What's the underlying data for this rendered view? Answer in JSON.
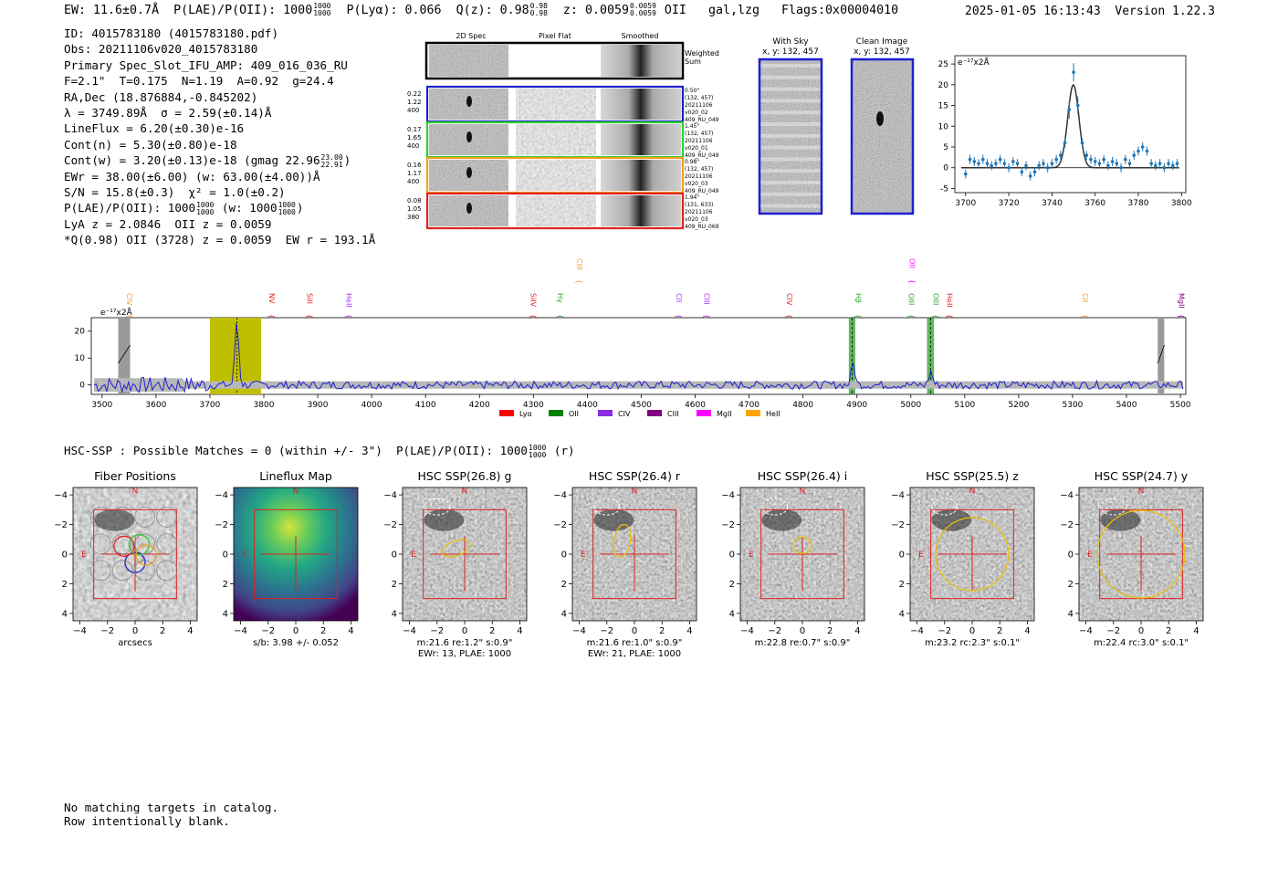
{
  "header": {
    "ew": "EW: 11.6±0.7Å",
    "plae": "P(LAE)/P(OII): 1000",
    "plae_hi": "1000",
    "plae_lo": "1000",
    "plya": "P(Lyα): 0.066",
    "qz": "Q(z): 0.98",
    "qz_hi": "0.98",
    "qz_lo": "0.98",
    "z": "z: 0.0059",
    "z_hi": "0.0059",
    "z_lo": "0.0059",
    "z_line": "OII",
    "flags": "gal,lzg   Flags:0x00004010",
    "datetime": "2025-01-05 16:13:43",
    "version": "Version 1.22.3"
  },
  "info": {
    "id": "ID: 4015783180 (4015783180.pdf)",
    "obs": "Obs: 20211106v020_4015783180",
    "primary": "Primary Spec_Slot_IFU_AMP: 409_016_036_RU",
    "fiber": "F=2.1\"  T=0.175  N=1.19  A=0.92  g=24.4",
    "radec": "RA,Dec (18.876884,-0.845202)",
    "lambda": "λ = 3749.89Å  σ = 2.59(±0.14)Å",
    "lineflux": "LineFlux = 6.20(±0.30)e-16",
    "contn": "Cont(n) = 5.30(±0.80)e-18",
    "contw": "Cont(w) = 3.20(±0.13)e-18 (gmag 22.96",
    "gmag_hi": "23.00",
    "gmag_lo": "22.91",
    "ewr": "EWr = 38.00(±6.00) (w: 63.00(±4.00))Å",
    "sn": "S/N = 15.8(±0.3)  χ² = 1.0(±0.2)",
    "plae": "P(LAE)/P(OII): 1000",
    "plae_hi": "1000",
    "plae_lo": "1000",
    "plae_w": "(w: 1000",
    "plae_w_hi": "1000",
    "plae_w_lo": "1000",
    "lya": "LyA z = 2.0846  OII z = 0.0059",
    "q": "*Q(0.98) OII (3728) z = 0.0059  EW r = 193.1Å"
  },
  "cutouts": {
    "col_headers": [
      "2D Spec",
      "Pixel Flat",
      "Smoothed"
    ],
    "weighted_sum": [
      "Weighted",
      "Sum"
    ],
    "rows": [
      {
        "left": [
          "0.22",
          "1.22",
          "400"
        ],
        "right": [
          "0.50\"",
          "(132, 457)",
          "20211106",
          "v020_02",
          "409_RU_049"
        ],
        "color": "#1f1fd0"
      },
      {
        "left": [
          "0.17",
          "1.65",
          "400"
        ],
        "right": [
          "1.45\"",
          "(132, 457)",
          "20211106",
          "v020_01",
          "409_RU_049"
        ],
        "color": "#2ad12a"
      },
      {
        "left": [
          "0.16",
          "1.17",
          "400"
        ],
        "right": [
          "0.98\"",
          "(132, 457)",
          "20211106",
          "v020_03",
          "409_RU_049"
        ],
        "color": "#f0a020"
      },
      {
        "left": [
          "0.08",
          "1.05",
          "380"
        ],
        "right": [
          "1.94\"",
          "(131, 633)",
          "20211106",
          "v020_03",
          "409_RU_069"
        ],
        "color": "#e02020"
      }
    ],
    "with_sky": [
      "With Sky",
      "x, y: 132, 457"
    ],
    "clean": [
      "Clean Image",
      "x, y: 132, 457"
    ]
  },
  "colors": {
    "blue": "#1f1fd0",
    "data": "#1f77b4",
    "yellow_band": "#bfbf00",
    "green_band": "#2ca02c",
    "gray": "#9a9a9a"
  },
  "chart_data": [
    {
      "type": "scatter",
      "title": "",
      "unit_label": "e⁻¹⁷x2Å",
      "xlim": [
        3695,
        3802
      ],
      "ylim": [
        -6,
        27
      ],
      "xticks": [
        3700,
        3720,
        3740,
        3760,
        3780,
        3800
      ],
      "yticks": [
        -5,
        0,
        5,
        10,
        15,
        20,
        25
      ],
      "x": [
        3700,
        3702,
        3704,
        3706,
        3708,
        3710,
        3712,
        3714,
        3716,
        3718,
        3720,
        3722,
        3724,
        3726,
        3728,
        3730,
        3732,
        3734,
        3736,
        3738,
        3740,
        3742,
        3744,
        3746,
        3748,
        3750,
        3752,
        3754,
        3756,
        3758,
        3760,
        3762,
        3764,
        3766,
        3768,
        3770,
        3772,
        3774,
        3776,
        3778,
        3780,
        3782,
        3784,
        3786,
        3788,
        3790,
        3792,
        3794,
        3796,
        3798
      ],
      "y": [
        -1.5,
        2,
        1.5,
        1,
        2,
        1,
        0.5,
        1,
        2,
        1,
        0,
        1.5,
        1,
        -1,
        0.5,
        -2,
        -1,
        0.5,
        1,
        0,
        1,
        2,
        3,
        6,
        14,
        23,
        15,
        6,
        3,
        2,
        1.5,
        1,
        2,
        0.5,
        1.5,
        1,
        0,
        2,
        1,
        3,
        4,
        5,
        4,
        1,
        0.5,
        1,
        0,
        1,
        0.5,
        1
      ]
    },
    {
      "type": "line",
      "unit_label": "e⁻¹⁷x2Å",
      "xlim": [
        3480,
        5510
      ],
      "ylim": [
        -3.5,
        25
      ],
      "xticks": [
        3500,
        3600,
        3700,
        3800,
        3900,
        4000,
        4100,
        4200,
        4300,
        4400,
        4500,
        4600,
        4700,
        4800,
        4900,
        5000,
        5100,
        5200,
        5300,
        5400,
        5500
      ],
      "yticks": [
        0,
        10,
        20
      ],
      "peaks": [
        {
          "x": 3750,
          "y": 24
        },
        {
          "x": 4893,
          "y": 8
        },
        {
          "x": 5037,
          "y": 5
        }
      ],
      "bands": [
        {
          "from": 3700,
          "to": 3795,
          "kind": "yellow"
        },
        {
          "from": 3530,
          "to": 3552,
          "kind": "gray"
        },
        {
          "from": 4885,
          "to": 4897,
          "kind": "green"
        },
        {
          "from": 5030,
          "to": 5043,
          "kind": "green"
        },
        {
          "from": 5458,
          "to": 5470,
          "kind": "gray"
        }
      ],
      "lines": [
        {
          "label": "CIV",
          "x": 3541,
          "color": "#f0a020",
          "row": 1
        },
        {
          "label": "NV",
          "x": 3805,
          "color": "#e02020",
          "row": 1
        },
        {
          "label": "SiII",
          "x": 3875,
          "color": "#e02020",
          "row": 1
        },
        {
          "label": "HeII",
          "x": 3948,
          "color": "#9b30ff",
          "row": 1
        },
        {
          "label": "SiIV",
          "x": 4290,
          "color": "#e02020",
          "row": 1
        },
        {
          "label": "CIII",
          "x": 4376,
          "color": "#f0a020",
          "row": 0
        },
        {
          "label": "Hγ",
          "x": 4340,
          "color": "#2ca02c",
          "row": 1
        },
        {
          "label": "CII",
          "x": 4560,
          "color": "#9b30ff",
          "row": 1
        },
        {
          "label": "CIII",
          "x": 4612,
          "color": "#9b30ff",
          "row": 1
        },
        {
          "label": "CIV",
          "x": 4765,
          "color": "#e02020",
          "row": 1
        },
        {
          "label": "Hβ",
          "x": 4893,
          "color": "#2ca02c",
          "row": 1
        },
        {
          "label": "OII",
          "x": 4993,
          "color": "#ff00ff",
          "row": 0
        },
        {
          "label": "OIII",
          "x": 4991,
          "color": "#2ca02c",
          "row": 1
        },
        {
          "label": "OIII",
          "x": 5037,
          "color": "#2ca02c",
          "row": 1
        },
        {
          "label": "HeII",
          "x": 5062,
          "color": "#e02020",
          "row": 1
        },
        {
          "label": "CII",
          "x": 5314,
          "color": "#f0a020",
          "row": 1
        },
        {
          "label": "MgII",
          "x": 5492,
          "color": "#800080",
          "row": 1
        }
      ],
      "legend": [
        {
          "label": "Lyα",
          "color": "#ff0000"
        },
        {
          "label": "OII",
          "color": "#008000"
        },
        {
          "label": "CIV",
          "color": "#8a2be2"
        },
        {
          "label": "CIII",
          "color": "#800080"
        },
        {
          "label": "MgII",
          "color": "#ff00ff"
        },
        {
          "label": "HeII",
          "color": "#ffa500"
        }
      ]
    }
  ],
  "hsc": {
    "title": "HSC-SSP : Possible Matches = 0 (within +/- 3\")  P(LAE)/P(OII): 1000",
    "plae_hi": "1000",
    "plae_lo": "1000",
    "band": "(r)",
    "ticks": [
      "−4",
      "−2",
      "0",
      "2",
      "4"
    ],
    "north": "N",
    "east": "E",
    "panels": [
      {
        "title": "Fiber Positions",
        "cap1": "arcsecs",
        "cap2": ""
      },
      {
        "title": "Lineflux Map",
        "cap1": "s/b: 3.98 +/- 0.052",
        "cap2": ""
      },
      {
        "title": "HSC SSP(26.8) g",
        "cap1": "m:21.6  re:1.2\"  s:0.9\"",
        "cap2": "EWr: 13, PLAE: 1000"
      },
      {
        "title": "HSC SSP(26.4) r",
        "cap1": "m:21.6  re:1.0\"  s:0.9\"",
        "cap2": "EWr: 21, PLAE: 1000"
      },
      {
        "title": "HSC SSP(26.4) i",
        "cap1": "m:22.8  re:0.7\"  s:0.9\"",
        "cap2": ""
      },
      {
        "title": "HSC SSP(25.5) z",
        "cap1": "m:23.2 rc:2.3\"  s:0.1\"",
        "cap2": ""
      },
      {
        "title": "HSC SSP(24.7) y",
        "cap1": "m:22.4 rc:3.0\"  s:0.1\"",
        "cap2": ""
      }
    ]
  },
  "footer": {
    "line1": "No matching targets in catalog.",
    "line2": "Row intentionally blank."
  }
}
